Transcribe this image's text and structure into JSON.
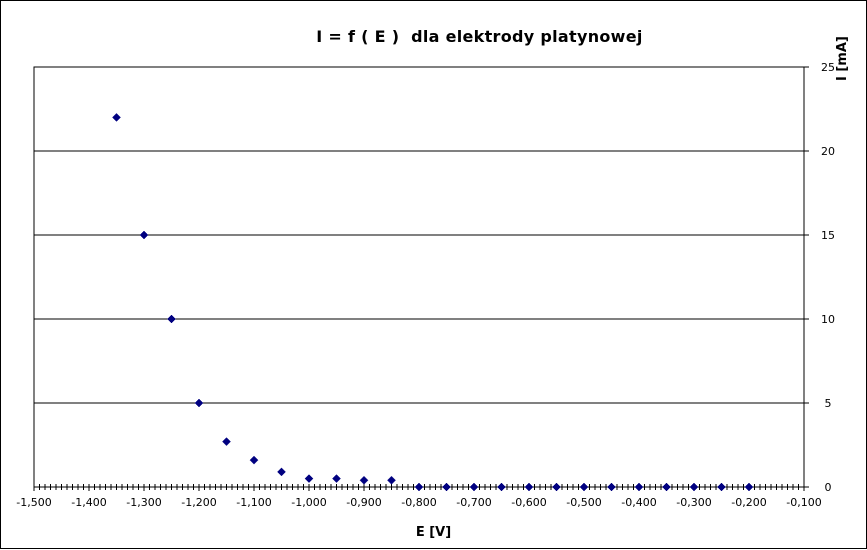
{
  "chart_data": {
    "type": "scatter",
    "title": "I = f ( E )  dla elektrody platynowej",
    "xlabel": "E [V]",
    "ylabel": "I [mA]",
    "xlim": [
      -1.5,
      -0.1
    ],
    "ylim": [
      0,
      25
    ],
    "x_ticks": [
      "-1,500",
      "-1,400",
      "-1,300",
      "-1,200",
      "-1,100",
      "-1,000",
      "-0,900",
      "-0,800",
      "-0,700",
      "-0,600",
      "-0,500",
      "-0,400",
      "-0,300",
      "-0,200",
      "-0,100"
    ],
    "y_ticks": [
      "0",
      "5",
      "10",
      "15",
      "20",
      "25"
    ],
    "y_axis_side": "right",
    "grid": "horizontal",
    "marker": "diamond",
    "marker_color": "#000080",
    "series": [
      {
        "x": [
          -1.35,
          -1.3,
          -1.25,
          -1.2,
          -1.15,
          -1.1,
          -1.05,
          -1.0,
          -0.95,
          -0.9,
          -0.85,
          -0.8,
          -0.75,
          -0.7,
          -0.65,
          -0.6,
          -0.55,
          -0.5,
          -0.45,
          -0.4,
          -0.35,
          -0.3,
          -0.25,
          -0.2
        ],
        "y": [
          22.0,
          15.0,
          10.0,
          5.0,
          2.7,
          1.6,
          0.9,
          0.5,
          0.5,
          0.4,
          0.4,
          0.0,
          0.0,
          0.0,
          0.0,
          0.0,
          0.0,
          0.0,
          0.0,
          0.0,
          0.0,
          0.0,
          0.0,
          0.0
        ]
      }
    ]
  }
}
